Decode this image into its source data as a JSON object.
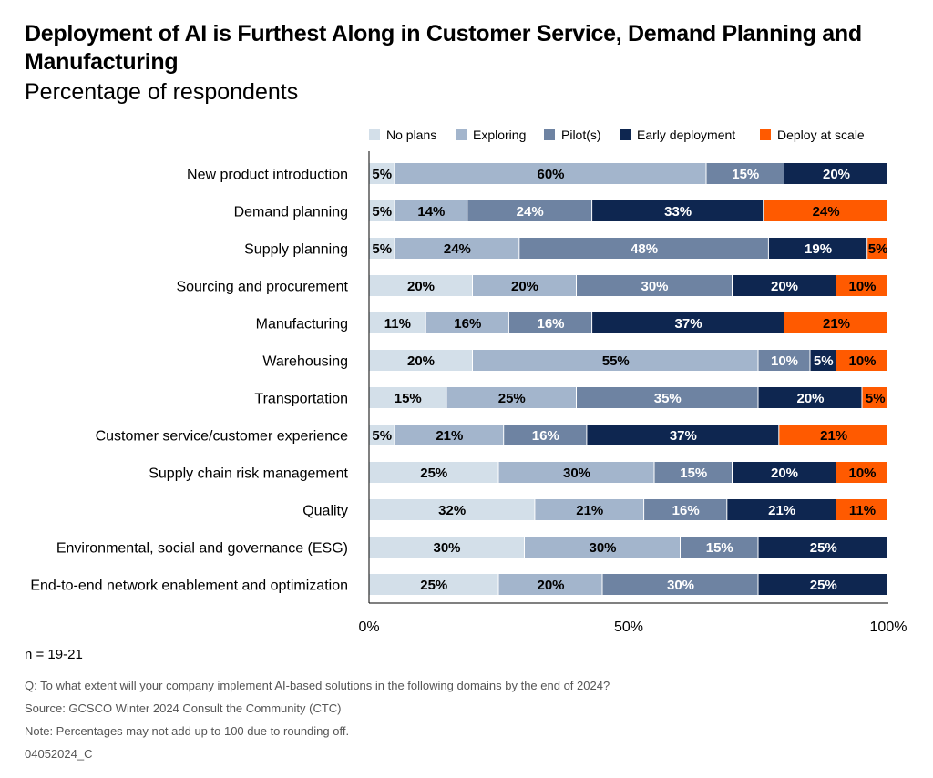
{
  "title": "Deployment of AI is Furthest Along in Customer Service, Demand Planning and Manufacturing",
  "subtitle": "Percentage of respondents",
  "footer": {
    "n": "n = 19-21",
    "question": "Q: To what extent will your company implement AI-based solutions in the following domains by the end of 2024?",
    "source": "Source: GCSCO Winter 2024 Consult the Community (CTC)",
    "note": "Note: Percentages may not add up to 100 due to rounding off.",
    "code": "04052024_C"
  },
  "chart_data": {
    "type": "bar",
    "orientation": "horizontal",
    "stacked": true,
    "title": "Deployment of AI is Furthest Along in Customer Service, Demand Planning and Manufacturing",
    "subtitle": "Percentage of respondents",
    "xlabel": "",
    "ylabel": "",
    "xlim": [
      0,
      100
    ],
    "x_ticks": [
      "0%",
      "50%",
      "100%"
    ],
    "legend_position": "top",
    "grid": false,
    "categories": [
      "New product introduction",
      "Demand planning",
      "Supply planning",
      "Sourcing and procurement",
      "Manufacturing",
      "Warehousing",
      "Transportation",
      "Customer service/customer experience",
      "Supply chain risk management",
      "Quality",
      "Environmental, social and governance (ESG)",
      "End-to-end network enablement and optimization"
    ],
    "series": [
      {
        "name": "No plans",
        "color": "#d3dfe9",
        "label_color": "#000000",
        "values": [
          5,
          5,
          5,
          20,
          11,
          20,
          15,
          5,
          25,
          32,
          30,
          25
        ]
      },
      {
        "name": "Exploring",
        "color": "#a3b5cc",
        "label_color": "#000000",
        "values": [
          60,
          14,
          24,
          20,
          16,
          55,
          25,
          21,
          30,
          21,
          30,
          20
        ]
      },
      {
        "name": "Pilot(s)",
        "color": "#6e83a2",
        "label_color": "#ffffff",
        "values": [
          15,
          24,
          48,
          30,
          16,
          10,
          35,
          16,
          15,
          16,
          15,
          30
        ]
      },
      {
        "name": "Early deployment",
        "color": "#0e2650",
        "label_color": "#ffffff",
        "values": [
          20,
          33,
          19,
          20,
          37,
          5,
          20,
          37,
          20,
          21,
          25,
          25
        ]
      },
      {
        "name": "Deploy at scale",
        "color": "#ff5a00",
        "label_color": "#000000",
        "values": [
          0,
          24,
          5,
          10,
          21,
          10,
          5,
          21,
          10,
          11,
          0,
          0
        ]
      }
    ]
  }
}
